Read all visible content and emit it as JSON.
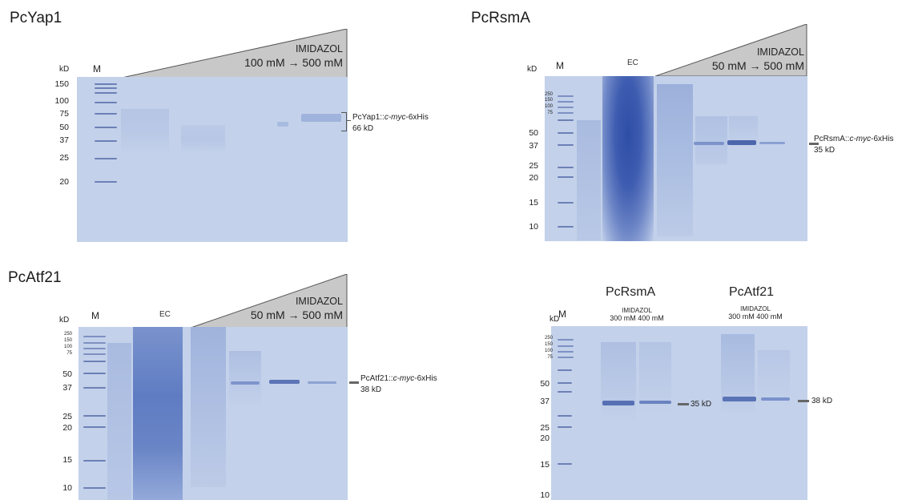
{
  "panels": {
    "p1": {
      "title": "PcYap1",
      "kd": "kD",
      "m": "M",
      "imidazol": "IMIDAZOL",
      "range": "100 mM → 500 mM",
      "markers": [
        "150",
        "100",
        "75",
        "50",
        "37",
        "25",
        "20"
      ],
      "annotation_line1": "PcYap1::",
      "annotation_italic": "c-myc",
      "annotation_suffix": "-6xHis",
      "annotation_line2": "66 kD"
    },
    "p2": {
      "title": "PcRsmA",
      "kd": "kD",
      "m": "M",
      "ec": "EC",
      "imidazol": "IMIDAZOL",
      "range": "50 mM → 500 mM",
      "markers_small": [
        "250",
        "150",
        "100",
        "75"
      ],
      "markers": [
        "50",
        "37",
        "25",
        "20",
        "15",
        "10"
      ],
      "annotation_line1": "PcRsmA::",
      "annotation_italic": "c-myc",
      "annotation_suffix": "-6xHis",
      "annotation_line2": "35 kD"
    },
    "p3": {
      "title": "PcAtf21",
      "kd": "kD",
      "m": "M",
      "ec": "EC",
      "imidazol": "IMIDAZOL",
      "range": "50 mM → 500 mM",
      "markers_small": [
        "250",
        "150",
        "100",
        "75"
      ],
      "markers": [
        "50",
        "37",
        "25",
        "20",
        "15",
        "10"
      ],
      "annotation_line1": "PcAtf21::",
      "annotation_italic": "c-myc",
      "annotation_suffix": "-6xHis",
      "annotation_line2": "38 kD"
    },
    "p4": {
      "kd": "kD",
      "m": "M",
      "group1": "PcRsmA",
      "group2": "PcAtf21",
      "imidazol": "IMIDAZOL",
      "conc1": "300 mM",
      "conc2": "400 mM",
      "markers_small": [
        "250",
        "150",
        "100",
        "75"
      ],
      "markers": [
        "50",
        "37",
        "25",
        "20",
        "15",
        "10"
      ],
      "label1": "35 kD",
      "label2": "38 kD"
    }
  },
  "colors": {
    "gel": "#c3d1ea",
    "band": "#4d66ab",
    "triangle": "#c8c8c8"
  }
}
